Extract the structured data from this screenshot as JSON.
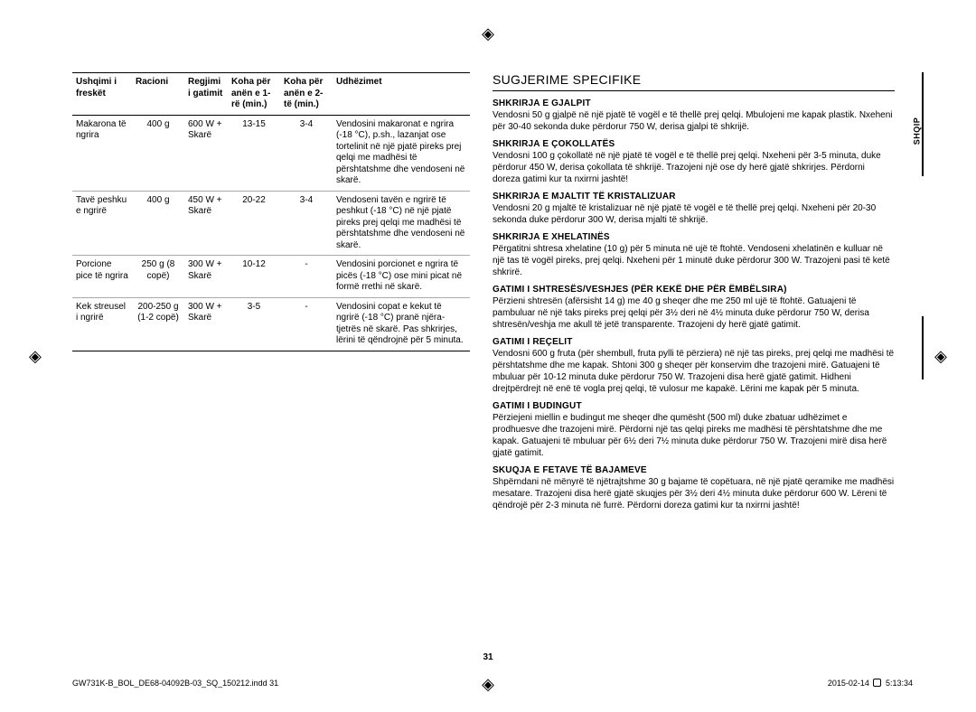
{
  "table": {
    "headers": {
      "food": "Ushqimi i freskët",
      "racioni": "Racioni",
      "regjimi": "Regjimi i gatimit",
      "koha1": "Koha për anën e 1-rë (min.)",
      "koha2": "Koha për anën e 2-të (min.)",
      "udhezimet": "Udhëzimet"
    },
    "rows": [
      {
        "food": "Makarona të ngrira",
        "racioni": "400 g",
        "regjimi": "600 W + Skarë",
        "koha1": "13-15",
        "koha2": "3-4",
        "udh": "Vendosini makaronat e ngrira (-18 °C), p.sh., lazanjat ose tortelinit në një pjatë pireks prej qelqi me madhësi të përshtatshme dhe vendoseni në skarë."
      },
      {
        "food": "Tavë peshku e ngrirë",
        "racioni": "400 g",
        "regjimi": "450 W + Skarë",
        "koha1": "20-22",
        "koha2": "3-4",
        "udh": "Vendoseni tavën e ngrirë të peshkut (-18 °C) në një pjatë pireks prej qelqi me madhësi të përshtatshme dhe vendoseni në skarë."
      },
      {
        "food": "Porcione pice të ngrira",
        "racioni": "250 g (8 copë)",
        "regjimi": "300 W + Skarë",
        "koha1": "10-12",
        "koha2": "-",
        "udh": "Vendosini porcionet e ngrira të picës (-18 °C) ose mini picat në formë rrethi në skarë."
      },
      {
        "food": "Kek streusel i ngrirë",
        "racioni": "200-250 g (1-2 copë)",
        "regjimi": "300 W + Skarë",
        "koha1": "3-5",
        "koha2": "-",
        "udh": "Vendosini copat e kekut të ngrirë (-18 °C) pranë njëra-tjetrës në skarë. Pas shkrirjes, lërini të qëndrojnë për 5 minuta."
      }
    ]
  },
  "rightCol": {
    "sectionTitle": "SUGJERIME SPECIFIKE",
    "tips": [
      {
        "heading": "SHKRIRJA E GJALPIT",
        "body": "Vendosni 50 g gjalpë në një pjatë të vogël e të thellë prej qelqi. Mbulojeni me kapak plastik. Nxeheni për 30-40 sekonda duke përdorur 750 W, derisa gjalpi të shkrijë."
      },
      {
        "heading": "SHKRIRJA E ÇOKOLLATËS",
        "body": "Vendosni 100 g çokollatë në një pjatë të vogël e të thellë prej qelqi. Nxeheni për 3-5 minuta, duke përdorur 450 W, derisa çokollata të shkrijë. Trazojeni një ose dy herë gjatë shkrirjes. Përdorni doreza gatimi kur ta nxirrni jashtë!"
      },
      {
        "heading": "SHKRIRJA E MJALTIT TË KRISTALIZUAR",
        "body": "Vendosni 20 g mjaltë të kristalizuar në një pjatë të vogël e të thellë prej qelqi. Nxeheni për 20-30 sekonda duke përdorur 300 W, derisa mjalti të shkrijë."
      },
      {
        "heading": "SHKRIRJA E XHELATINËS",
        "body": "Përgatitni shtresa xhelatine (10 g) për 5 minuta në ujë të ftohtë. Vendoseni xhelatinën e kulluar në një tas të vogël pireks, prej qelqi. Nxeheni për 1 minutë duke përdorur 300 W. Trazojeni pasi të ketë shkrirë."
      },
      {
        "heading": "GATIMI I SHTRESËS/VESHJES (PËR KEKË DHE PËR ËMBËLSIRA)",
        "body": "Përzieni shtresën (afërsisht 14 g) me 40 g sheqer dhe me 250 ml ujë të ftohtë. Gatuajeni të pambuluar në një taks pireks prej qelqi për 3½ deri në 4½ minuta duke përdorur 750 W, derisa shtresën/veshja me akull të jetë transparente. Trazojeni dy herë gjatë gatimit."
      },
      {
        "heading": "GATIMI I REÇELIT",
        "body": "Vendosni 600 g fruta (për shembull, fruta pylli të përziera) në një tas pireks, prej qelqi me madhësi të përshtatshme dhe me kapak. Shtoni 300 g sheqer për konservim dhe trazojeni mirë. Gatuajeni të mbuluar për 10-12 minuta duke përdorur 750 W. Trazojeni disa herë gjatë gatimit. Hidheni drejtpërdrejt në enë të vogla prej qelqi, të vulosur me kapakë. Lërini me kapak për 5 minuta."
      },
      {
        "heading": "GATIMI I BUDINGUT",
        "body": "Përziejeni miellin e budingut me sheqer dhe qumësht (500 ml) duke zbatuar udhëzimet e prodhuesve dhe trazojeni mirë. Përdorni një tas qelqi pireks me madhësi të përshtatshme dhe me kapak. Gatuajeni të mbuluar për 6½ deri 7½ minuta duke përdorur 750 W. Trazojeni mirë disa herë gjatë gatimit."
      },
      {
        "heading": "SKUQJA E FETAVE TË BAJAMEVE",
        "body": "Shpërndani në mënyrë të njëtrajtshme 30 g bajame të copëtuara, në një pjatë qeramike me madhësi mesatare. Trazojeni disa herë gjatë skuqjes për 3½ deri 4½ minuta duke përdorur 600 W. Lëreni të qëndrojë për 2-3 minuta në furrë. Përdorni doreza gatimi kur ta nxirrni jashtë!"
      }
    ]
  },
  "sideTab": "SHQIP",
  "pageNumber": "31",
  "footer": {
    "left": "GW731K-B_BOL_DE68-04092B-03_SQ_150212.indd   31",
    "rightDate": "2015-02-14",
    "rightTime": "5:13:34"
  }
}
